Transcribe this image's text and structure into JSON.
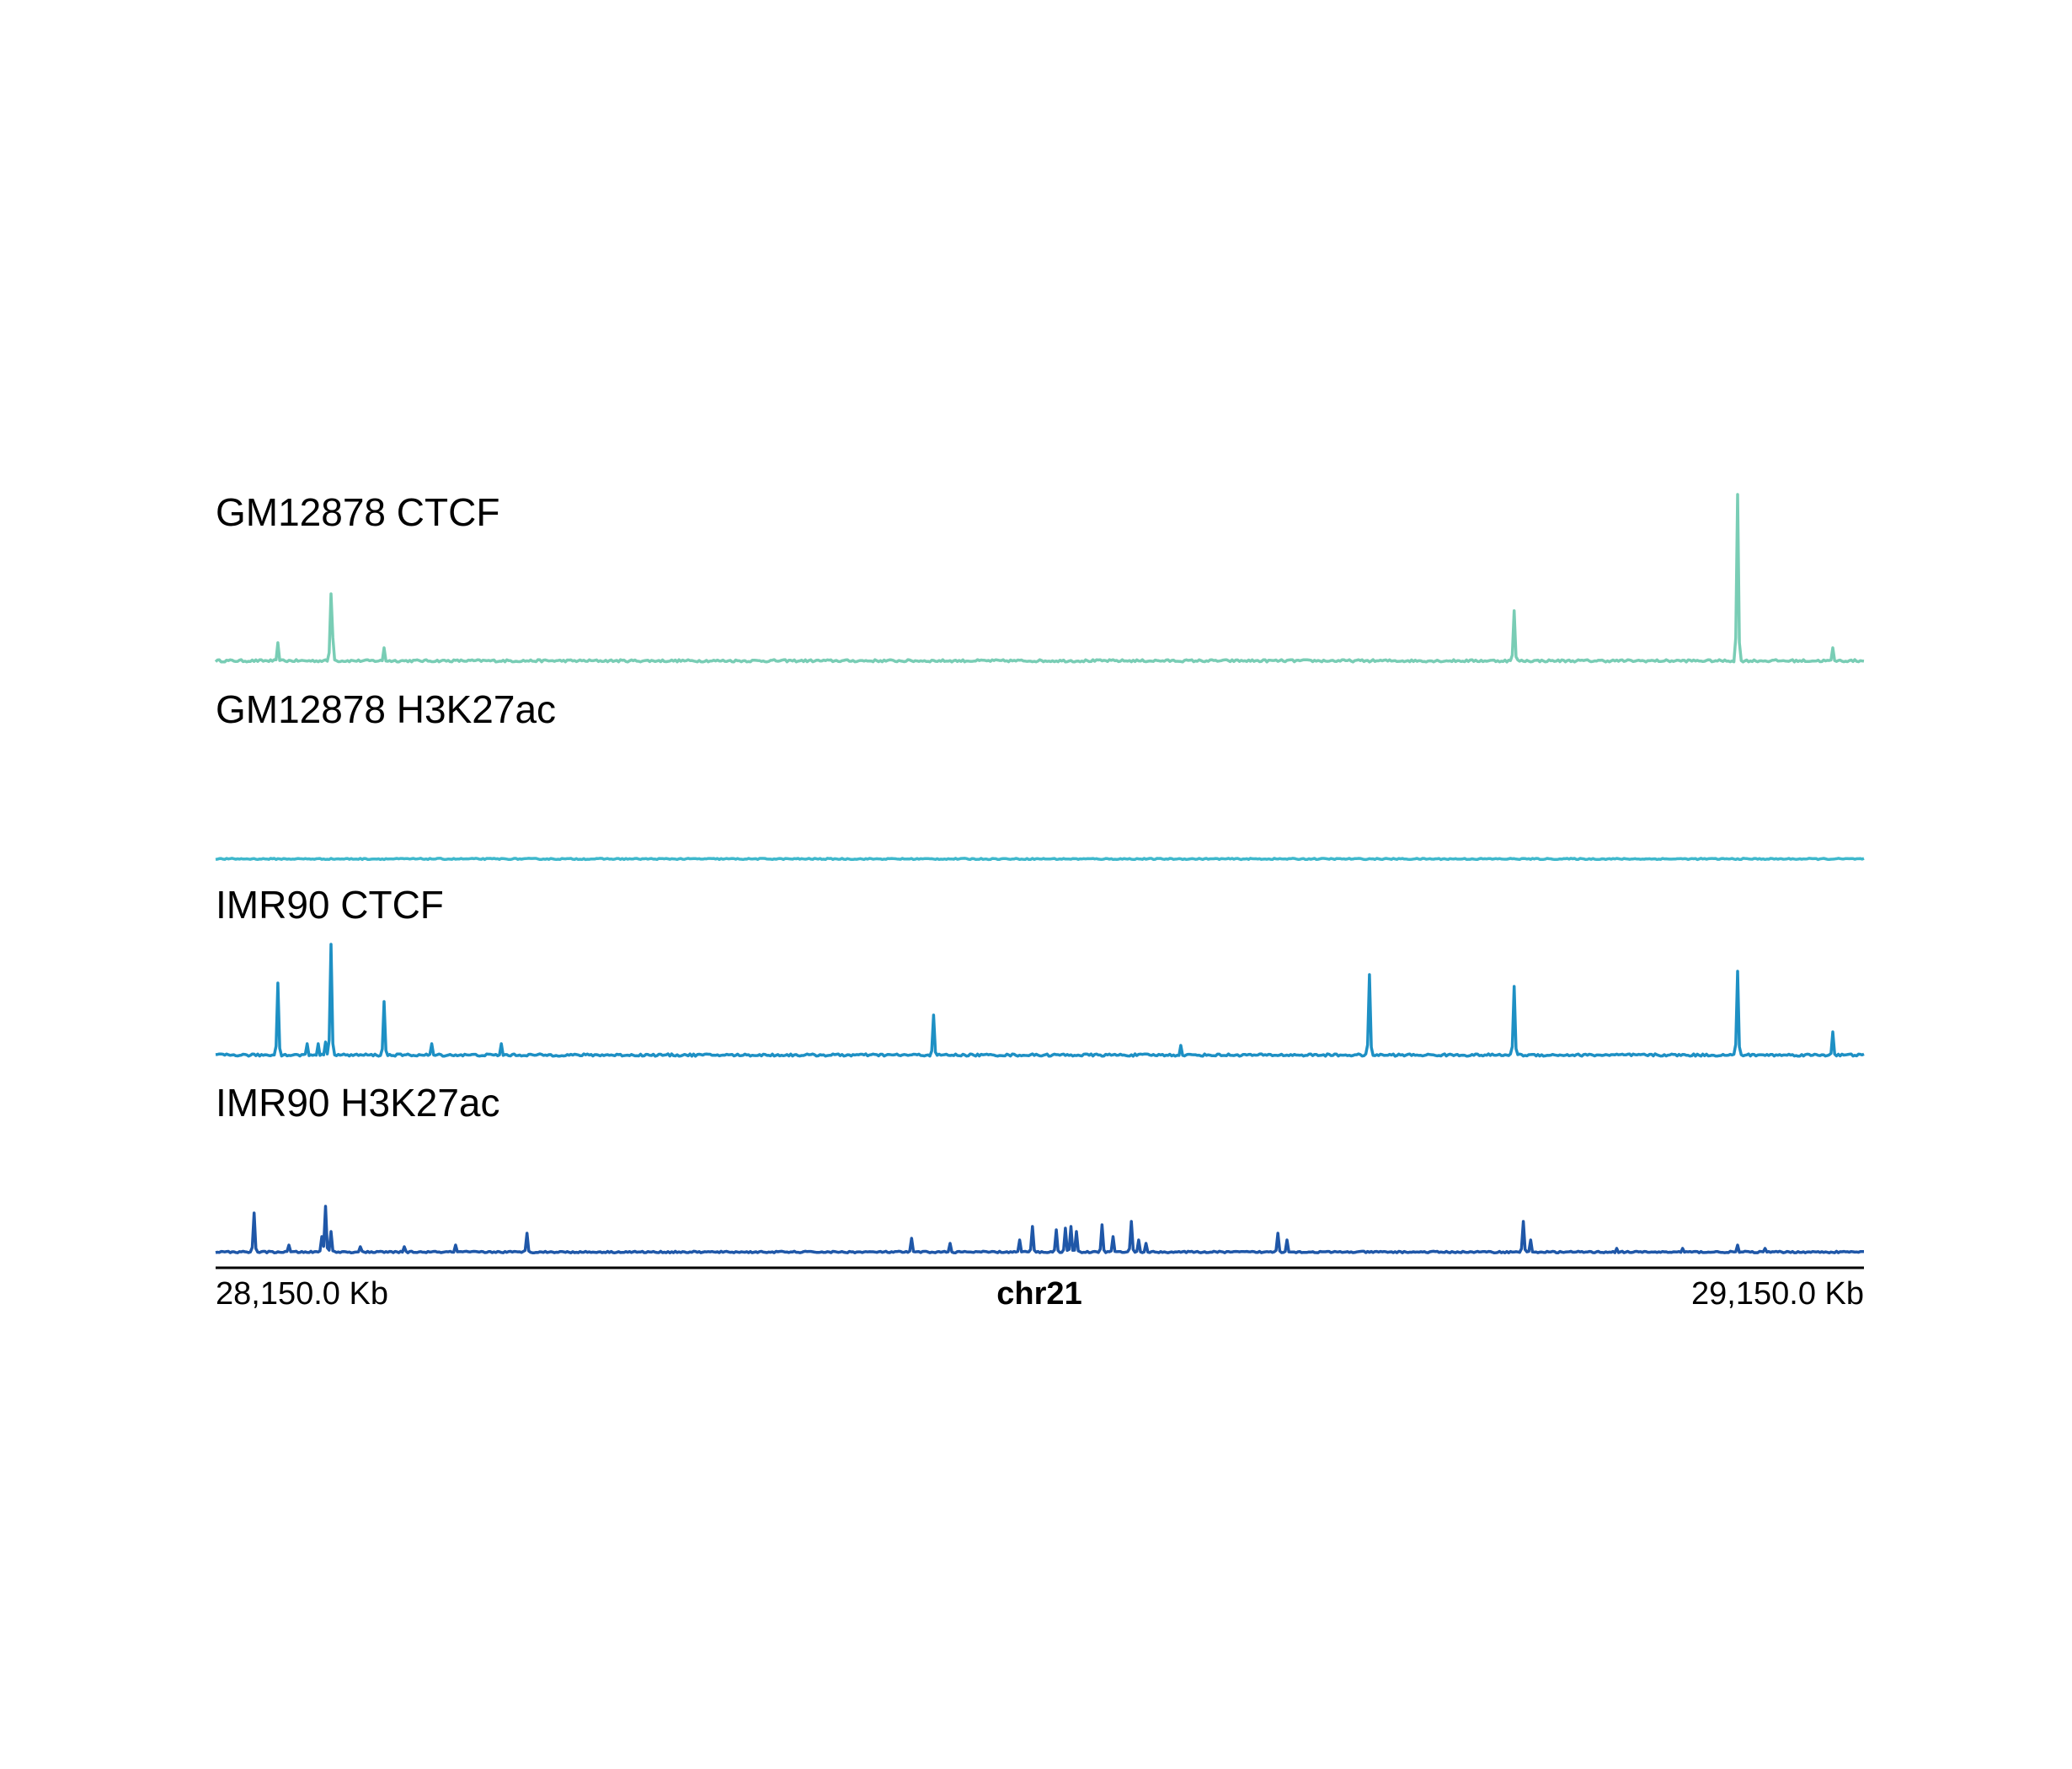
{
  "chart_data": {
    "type": "line",
    "chromosome": "chr21",
    "xlim": [
      28150.0,
      29150.0
    ],
    "x_unit": "Kb",
    "start_label": "28,150.0 Kb",
    "end_label": "29,150.0 Kb",
    "ylim": [
      0,
      100
    ],
    "series": [
      {
        "name": "GM12878 CTCF",
        "color": "#79cdb5",
        "baseline": 1.5,
        "peaks": [
          {
            "x": 28187.6,
            "y": 12
          },
          {
            "x": 28220.5,
            "y": 41
          },
          {
            "x": 28221.5,
            "y": 15
          },
          {
            "x": 28252.5,
            "y": 9
          },
          {
            "x": 28937.5,
            "y": 31
          },
          {
            "x": 29073.6,
            "y": 100
          },
          {
            "x": 29131.3,
            "y": 9
          }
        ]
      },
      {
        "name": "GM12878 H3K27ac",
        "color": "#3fb8cc",
        "baseline": 0.8,
        "peaks": []
      },
      {
        "name": "IMR90 CTCF",
        "color": "#1e90c4",
        "baseline": 1.5,
        "peaks": [
          {
            "x": 28187.6,
            "y": 44
          },
          {
            "x": 28206.0,
            "y": 8
          },
          {
            "x": 28212.4,
            "y": 8
          },
          {
            "x": 28216.5,
            "y": 9
          },
          {
            "x": 28220.5,
            "y": 67
          },
          {
            "x": 28252.5,
            "y": 33
          },
          {
            "x": 28281.3,
            "y": 8
          },
          {
            "x": 28323.0,
            "y": 8
          },
          {
            "x": 28585.5,
            "y": 25
          },
          {
            "x": 28735.0,
            "y": 7
          },
          {
            "x": 28849.6,
            "y": 49
          },
          {
            "x": 28937.5,
            "y": 42
          },
          {
            "x": 29073.6,
            "y": 51
          },
          {
            "x": 29131.3,
            "y": 15
          }
        ]
      },
      {
        "name": "IMR90 H3K27ac",
        "color": "#1f57a8",
        "baseline": 1.0,
        "peaks": [
          {
            "x": 28173.0,
            "y": 24
          },
          {
            "x": 28194.0,
            "y": 5
          },
          {
            "x": 28214.5,
            "y": 10
          },
          {
            "x": 28217.0,
            "y": 28
          },
          {
            "x": 28219.5,
            "y": 13
          },
          {
            "x": 28238.0,
            "y": 4
          },
          {
            "x": 28264.0,
            "y": 4
          },
          {
            "x": 28295.0,
            "y": 5
          },
          {
            "x": 28339.0,
            "y": 12
          },
          {
            "x": 28572.0,
            "y": 9
          },
          {
            "x": 28595.0,
            "y": 6
          },
          {
            "x": 28638.0,
            "y": 8
          },
          {
            "x": 28645.0,
            "y": 16
          },
          {
            "x": 28660.0,
            "y": 14
          },
          {
            "x": 28665.0,
            "y": 15
          },
          {
            "x": 28669.0,
            "y": 16
          },
          {
            "x": 28672.0,
            "y": 13
          },
          {
            "x": 28688.0,
            "y": 17
          },
          {
            "x": 28694.0,
            "y": 10
          },
          {
            "x": 28705.0,
            "y": 19
          },
          {
            "x": 28710.0,
            "y": 8
          },
          {
            "x": 28715.0,
            "y": 6
          },
          {
            "x": 28794.0,
            "y": 12
          },
          {
            "x": 28800.0,
            "y": 8
          },
          {
            "x": 28943.0,
            "y": 19
          },
          {
            "x": 28948.0,
            "y": 8
          },
          {
            "x": 29073.0,
            "y": 5
          },
          {
            "x": 29000.0,
            "y": 3
          },
          {
            "x": 29040.0,
            "y": 3
          },
          {
            "x": 29090.0,
            "y": 3
          }
        ]
      }
    ]
  }
}
